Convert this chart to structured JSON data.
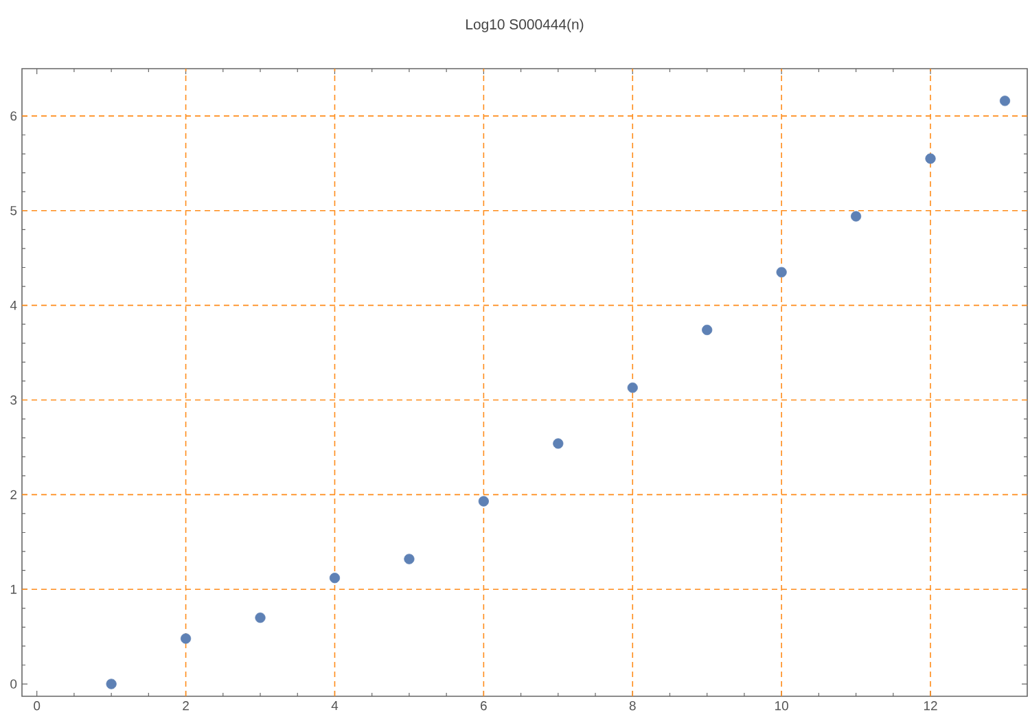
{
  "chart_data": {
    "type": "scatter",
    "title": "Log10 S000444(n)",
    "x": [
      1,
      2,
      3,
      4,
      5,
      6,
      7,
      8,
      9,
      10,
      11,
      12,
      13
    ],
    "series": [
      {
        "color": "#5e81b5",
        "values": [
          0,
          0.48,
          0.7,
          1.12,
          1.32,
          1.93,
          2.54,
          3.13,
          3.74,
          4.35,
          4.94,
          5.55,
          6.16
        ]
      }
    ],
    "marker": "circle",
    "xlim": [
      -0.2,
      13.3
    ],
    "ylim": [
      -0.13,
      6.5
    ],
    "xticks": [
      0,
      2,
      4,
      6,
      8,
      10,
      12
    ],
    "yticks": [
      0,
      1,
      2,
      3,
      4,
      5,
      6
    ],
    "ref_lines": [
      {
        "axis": "x",
        "value": 2,
        "color": "#ff8c1a",
        "line_style": "dashed"
      },
      {
        "axis": "x",
        "value": 4,
        "color": "#ff8c1a",
        "line_style": "dashed"
      },
      {
        "axis": "x",
        "value": 6,
        "color": "#ff8c1a",
        "line_style": "dashed"
      },
      {
        "axis": "x",
        "value": 8,
        "color": "#ff8c1a",
        "line_style": "dashed"
      },
      {
        "axis": "x",
        "value": 10,
        "color": "#ff8c1a",
        "line_style": "dashed"
      },
      {
        "axis": "x",
        "value": 12,
        "color": "#ff8c1a",
        "line_style": "dashed"
      },
      {
        "axis": "y",
        "value": 1,
        "color": "#ff8c1a",
        "line_style": "dashed"
      },
      {
        "axis": "y",
        "value": 2,
        "color": "#ff8c1a",
        "line_style": "dashed"
      },
      {
        "axis": "y",
        "value": 3,
        "color": "#ff8c1a",
        "line_style": "dashed"
      },
      {
        "axis": "y",
        "value": 4,
        "color": "#ff8c1a",
        "line_style": "dashed"
      },
      {
        "axis": "y",
        "value": 5,
        "color": "#ff8c1a",
        "line_style": "dashed"
      },
      {
        "axis": "y",
        "value": 6,
        "color": "#ff8c1a",
        "line_style": "dashed"
      }
    ]
  }
}
